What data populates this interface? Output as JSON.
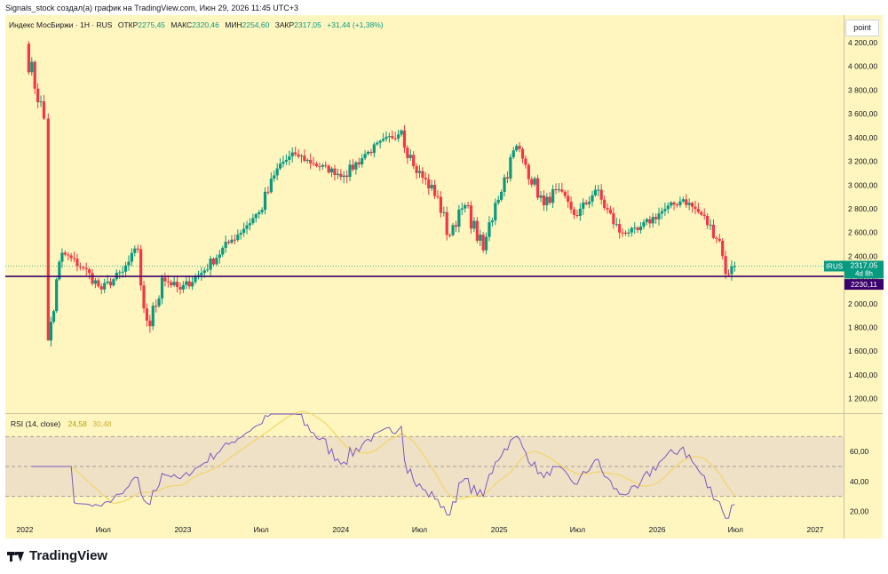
{
  "header": {
    "byline": "Signals_stock создал(а) график на TradingView.com, Июн 29, 2026 11:45 UTC+3"
  },
  "legend": {
    "symbol": "Индекс МосБиржи · 1Н · RUS",
    "open_label": "ОТКР",
    "open": "2275,45",
    "high_label": "МАКС",
    "high": "2320,46",
    "low_label": "МИН",
    "low": "2254,60",
    "close_label": "ЗАКР",
    "close": "2317,05",
    "change": "+31,44 (+1,38%)"
  },
  "scale_button": "point",
  "price_badge": {
    "ticker": "IRUS",
    "price": "2317,05",
    "countdown": "4d 8h"
  },
  "level_badge": "2230,11",
  "rsi_legend": {
    "name": "RSI (14, close)",
    "rsi": "24,58",
    "ma": "30,48"
  },
  "brand": "TradingView",
  "colors": {
    "background": "#fff6bf",
    "up": "#089981",
    "down": "#f23645",
    "level_line": "#3b006b",
    "rsi_line": "#7e57c2",
    "rsi_ma": "#f4d35e",
    "rsi_band": "#efe1c6"
  },
  "chart_data": [
    {
      "type": "candlestick",
      "title": "Индекс МосБиржи · 1Н · RUS",
      "y_scale": "linear",
      "ylim": [
        1100,
        4350
      ],
      "y_ticks": [
        "1 200,00",
        "1 400,00",
        "1 600,00",
        "1 800,00",
        "2 000,00",
        "2 200,00",
        "2 400,00",
        "2 600,00",
        "2 800,00",
        "3 000,00",
        "3 200,00",
        "3 400,00",
        "3 600,00",
        "3 800,00",
        "4 000,00",
        "4 200,00"
      ],
      "x_labels": [
        "2022",
        "Июл",
        "2023",
        "Июл",
        "2024",
        "Июл",
        "2025",
        "Июл",
        "2026",
        "Июл",
        "2027"
      ],
      "horizontal_level": 2230.11,
      "last_price": 2317.05,
      "key_points": [
        {
          "date": "2022-01-03",
          "value": 4150
        },
        {
          "date": "2022-02-14",
          "value": 3560
        },
        {
          "date": "2022-02-24",
          "value": 1690
        },
        {
          "date": "2022-03-28",
          "value": 2430
        },
        {
          "date": "2022-05-16",
          "value": 2300
        },
        {
          "date": "2022-06-27",
          "value": 2120
        },
        {
          "date": "2022-08-15",
          "value": 2270
        },
        {
          "date": "2022-09-19",
          "value": 2460
        },
        {
          "date": "2022-10-03",
          "value": 1960
        },
        {
          "date": "2022-10-17",
          "value": 1810
        },
        {
          "date": "2022-11-14",
          "value": 2220
        },
        {
          "date": "2022-12-26",
          "value": 2120
        },
        {
          "date": "2023-02-13",
          "value": 2260
        },
        {
          "date": "2023-04-24",
          "value": 2540
        },
        {
          "date": "2023-06-26",
          "value": 2770
        },
        {
          "date": "2023-08-14",
          "value": 3180
        },
        {
          "date": "2023-09-18",
          "value": 3260
        },
        {
          "date": "2023-10-30",
          "value": 3180
        },
        {
          "date": "2024-01-08",
          "value": 3080
        },
        {
          "date": "2024-03-04",
          "value": 3280
        },
        {
          "date": "2024-05-20",
          "value": 3460
        },
        {
          "date": "2024-06-17",
          "value": 3160
        },
        {
          "date": "2024-08-12",
          "value": 2900
        },
        {
          "date": "2024-09-02",
          "value": 2580
        },
        {
          "date": "2024-10-14",
          "value": 2830
        },
        {
          "date": "2024-11-25",
          "value": 2450
        },
        {
          "date": "2024-12-23",
          "value": 2850
        },
        {
          "date": "2025-02-10",
          "value": 3330
        },
        {
          "date": "2025-03-03",
          "value": 3170
        },
        {
          "date": "2025-04-14",
          "value": 2830
        },
        {
          "date": "2025-05-12",
          "value": 2960
        },
        {
          "date": "2025-06-30",
          "value": 2740
        },
        {
          "date": "2025-08-11",
          "value": 2960
        },
        {
          "date": "2025-10-06",
          "value": 2600
        },
        {
          "date": "2025-11-17",
          "value": 2620
        },
        {
          "date": "2026-01-12",
          "value": 2780
        },
        {
          "date": "2026-03-02",
          "value": 2880
        },
        {
          "date": "2026-04-13",
          "value": 2750
        },
        {
          "date": "2026-05-25",
          "value": 2530
        },
        {
          "date": "2026-06-08",
          "value": 2250
        },
        {
          "date": "2026-06-29",
          "value": 2317.05
        }
      ]
    },
    {
      "type": "line",
      "title": "RSI (14, close)",
      "ylim": [
        15,
        85
      ],
      "y_ticks": [
        "20,00",
        "40,00",
        "60,00"
      ],
      "bands": [
        30,
        50,
        70
      ],
      "series": [
        {
          "name": "RSI",
          "last": 24.58
        },
        {
          "name": "MA",
          "last": 30.48
        }
      ]
    }
  ]
}
